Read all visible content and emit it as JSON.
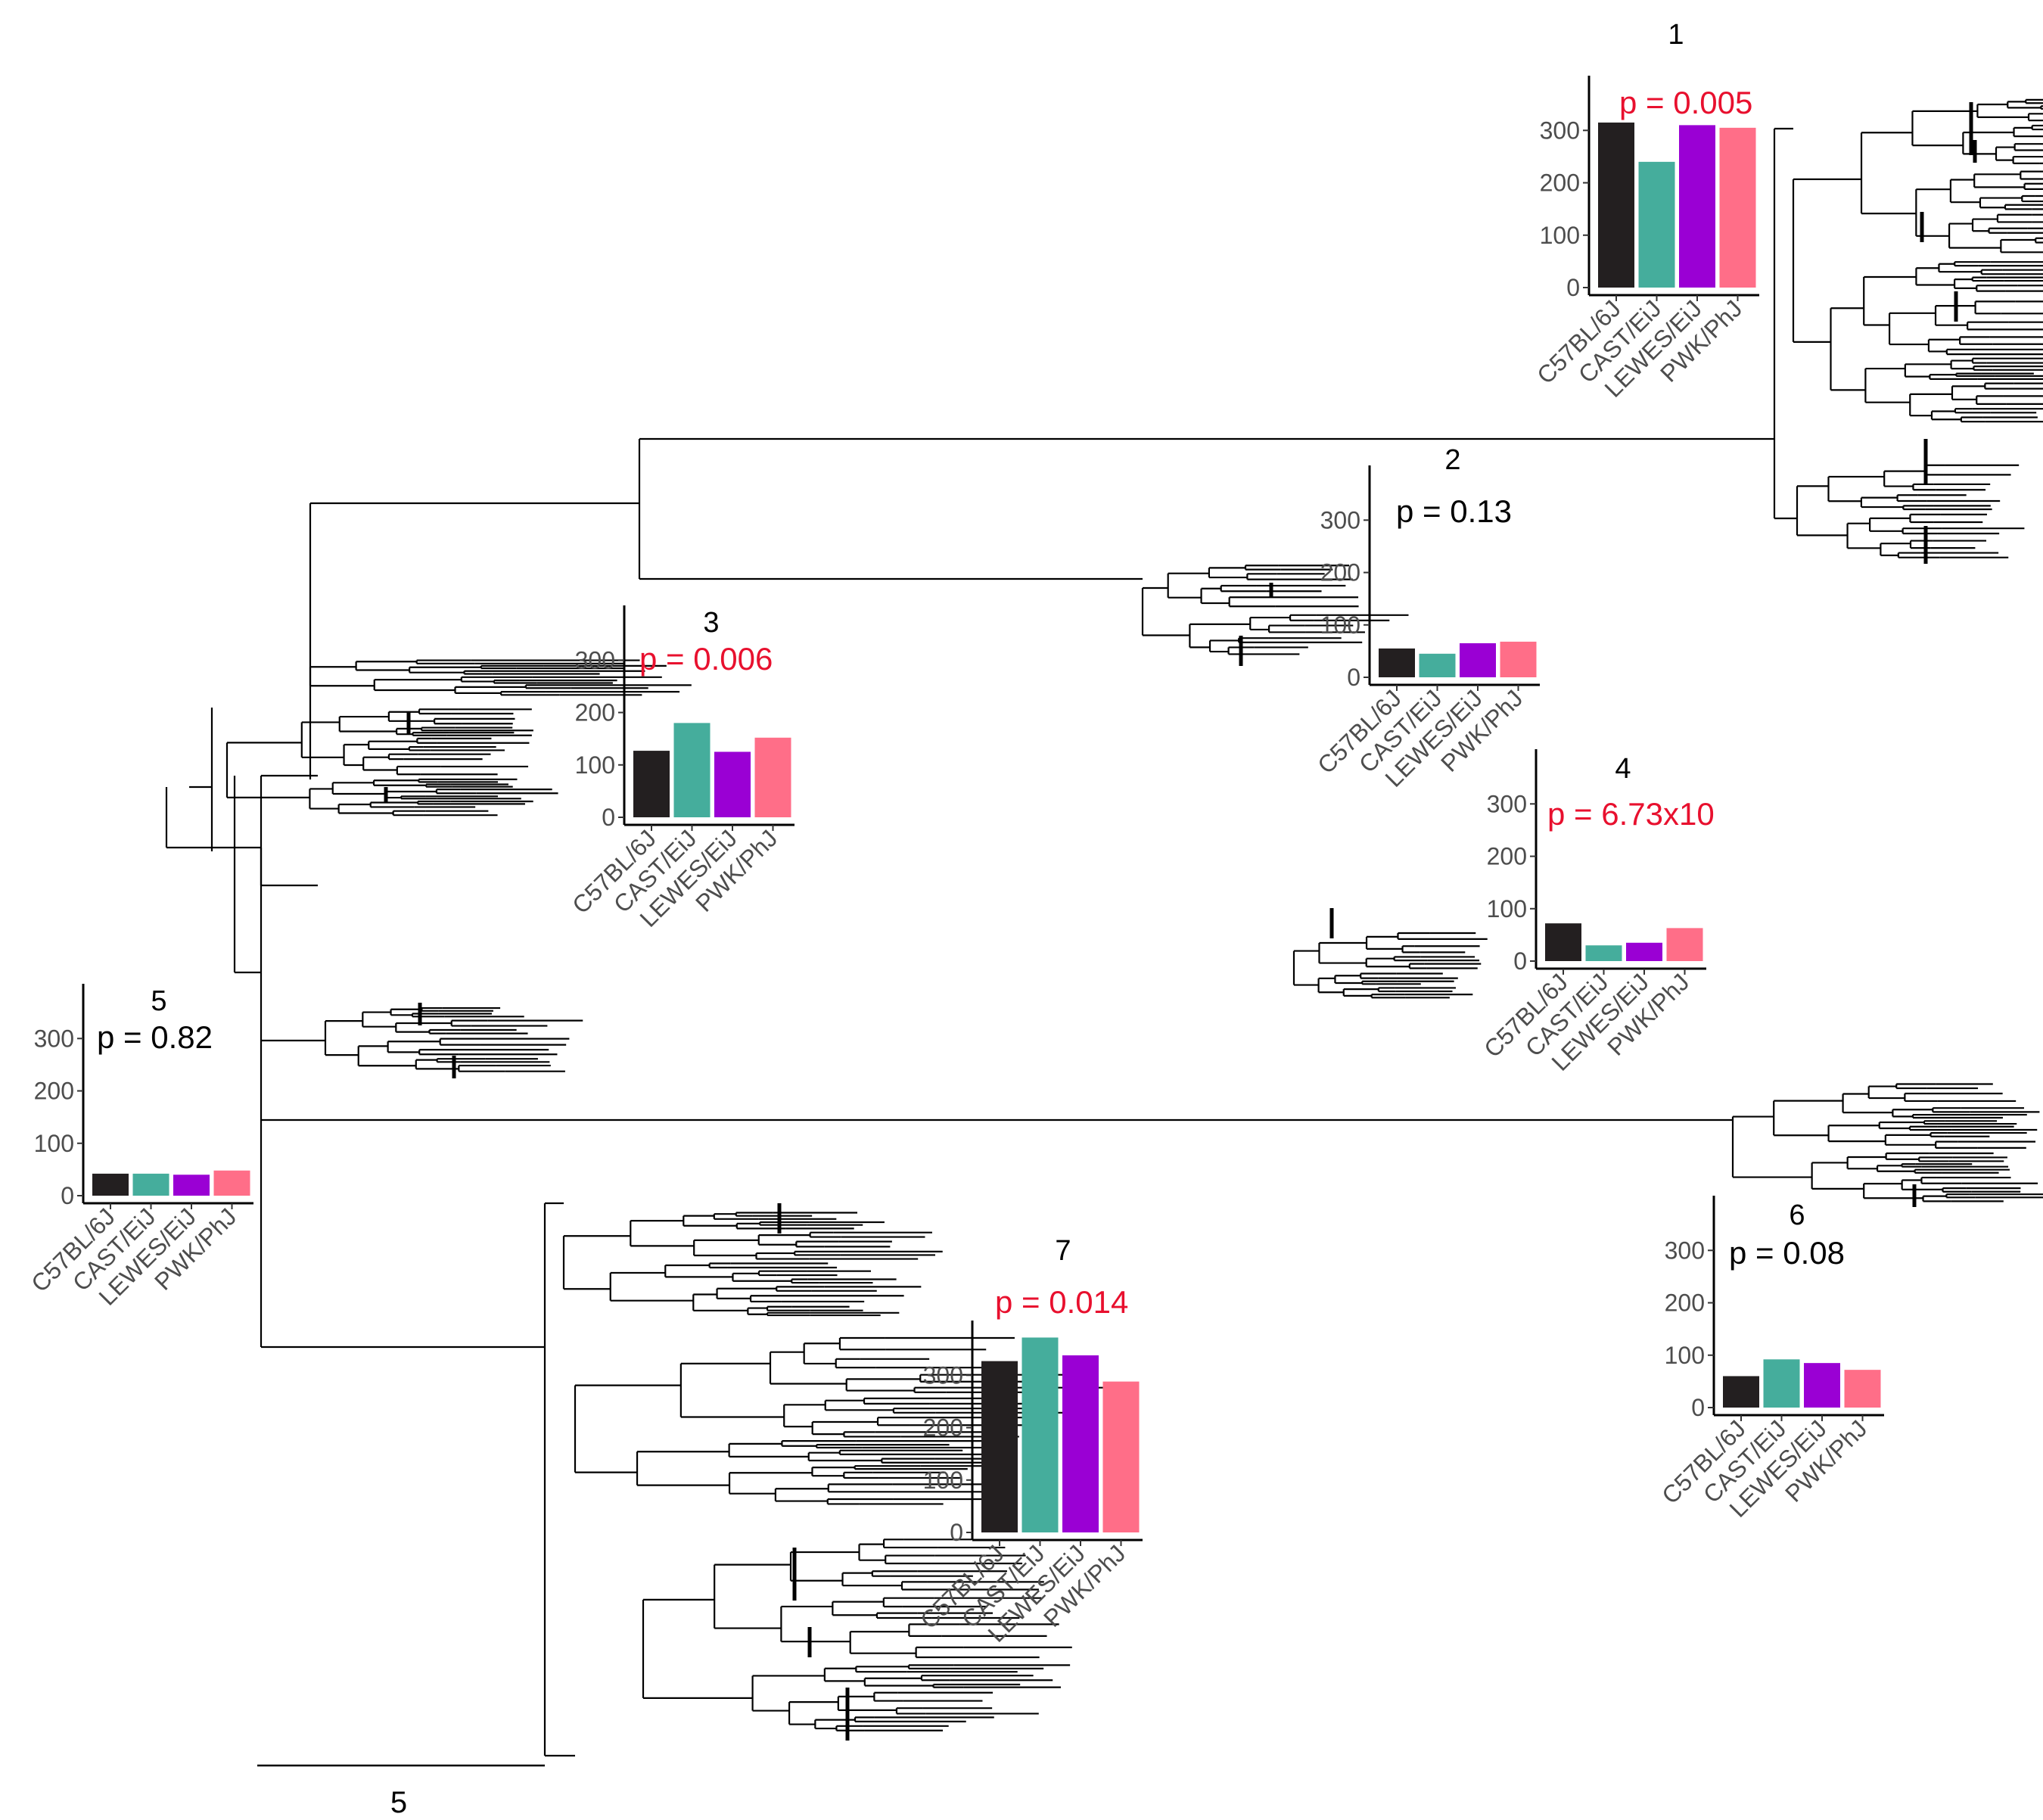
{
  "figure": {
    "scale_bar_label": "5"
  },
  "colors": {
    "C57BL/6J": "#231f20",
    "CAST/EiJ": "#45ad9c",
    "LEWES/EiJ": "#9a00d4",
    "PWK/PhJ": "#ff6e88",
    "significant": "#e8102e",
    "not_significant": "#000000",
    "tree": "#000000"
  },
  "chart_data": [
    {
      "type": "bar",
      "title": "1",
      "annotation": "p = 0.005",
      "significant": true,
      "categories": [
        "C57BL/6J",
        "CAST/EiJ",
        "LEWES/EiJ",
        "PWK/PhJ"
      ],
      "values": [
        315,
        240,
        310,
        305
      ],
      "yticks": [
        0,
        100,
        200,
        300
      ],
      "ylim": [
        0,
        390
      ]
    },
    {
      "type": "bar",
      "title": "2",
      "annotation": "p = 0.13",
      "significant": false,
      "categories": [
        "C57BL/6J",
        "CAST/EiJ",
        "LEWES/EiJ",
        "PWK/PhJ"
      ],
      "values": [
        55,
        45,
        65,
        68
      ],
      "yticks": [
        0,
        100,
        200,
        300
      ],
      "ylim": [
        0,
        390
      ]
    },
    {
      "type": "bar",
      "title": "3",
      "annotation": "p = 0.006",
      "significant": true,
      "categories": [
        "C57BL/6J",
        "CAST/EiJ",
        "LEWES/EiJ",
        "PWK/PhJ"
      ],
      "values": [
        127,
        180,
        125,
        152
      ],
      "yticks": [
        0,
        100,
        200,
        300
      ],
      "ylim": [
        0,
        390
      ]
    },
    {
      "type": "bar",
      "title": "4",
      "annotation": "p = 6.73x10",
      "significant": true,
      "categories": [
        "C57BL/6J",
        "CAST/EiJ",
        "LEWES/EiJ",
        "PWK/PhJ"
      ],
      "values": [
        72,
        30,
        35,
        63
      ],
      "yticks": [
        0,
        100,
        200,
        300
      ],
      "ylim": [
        0,
        390
      ]
    },
    {
      "type": "bar",
      "title": "5",
      "annotation": "p = 0.82",
      "significant": false,
      "categories": [
        "C57BL/6J",
        "CAST/EiJ",
        "LEWES/EiJ",
        "PWK/PhJ"
      ],
      "values": [
        42,
        42,
        40,
        48
      ],
      "yticks": [
        0,
        100,
        200,
        300
      ],
      "ylim": [
        0,
        390
      ]
    },
    {
      "type": "bar",
      "title": "6",
      "annotation": "p = 0.08",
      "significant": false,
      "categories": [
        "C57BL/6J",
        "CAST/EiJ",
        "LEWES/EiJ",
        "PWK/PhJ"
      ],
      "values": [
        60,
        92,
        85,
        72
      ],
      "yticks": [
        0,
        100,
        200,
        300
      ],
      "ylim": [
        0,
        390
      ]
    },
    {
      "type": "bar",
      "title": "7",
      "annotation": "p = 0.014",
      "significant": true,
      "categories": [
        "C57BL/6J",
        "CAST/EiJ",
        "LEWES/EiJ",
        "PWK/PhJ"
      ],
      "values": [
        327,
        372,
        338,
        288
      ],
      "yticks": [
        0,
        100,
        200,
        300
      ],
      "ylim": [
        0,
        390
      ]
    }
  ]
}
